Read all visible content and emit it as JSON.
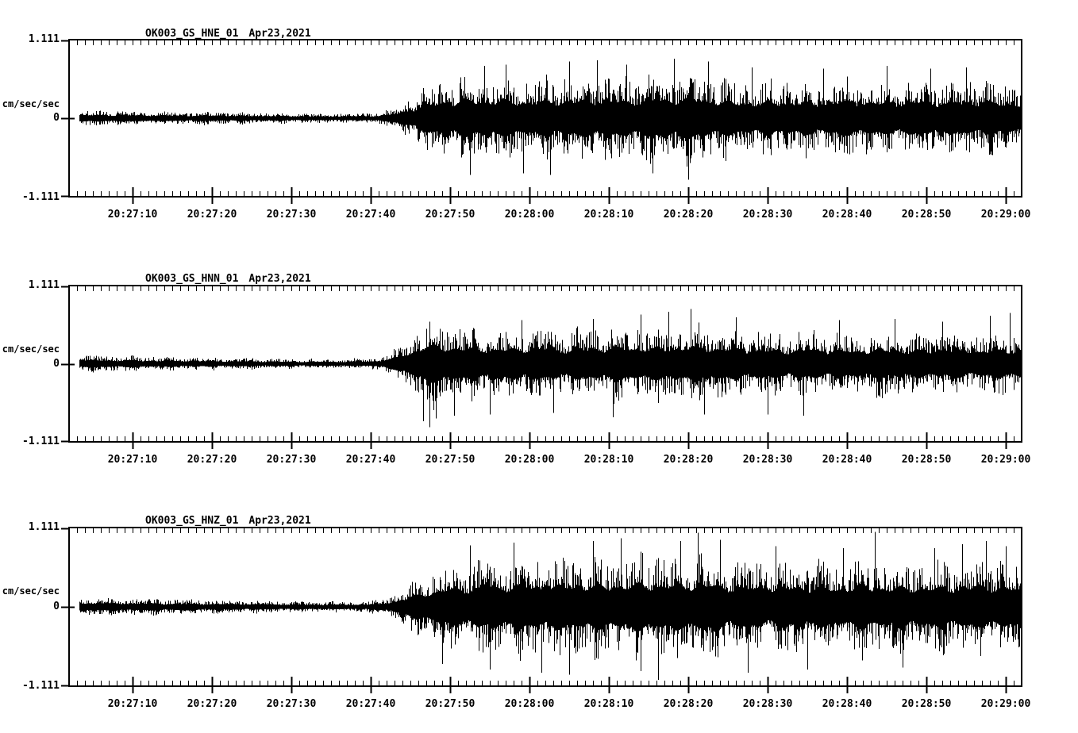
{
  "colors": {
    "background": "#ffffff",
    "trace": "#000000"
  },
  "chart_data": [
    {
      "type": "line",
      "kind": "seismogram",
      "title": "OK003_GS_HNE_01",
      "date_label": "Apr23,2021",
      "ylabel": "cm/sec/sec",
      "ytick_labels": [
        "1.111",
        "0",
        "-1.111"
      ],
      "ylim": [
        -1.111,
        1.111
      ],
      "x_window": [
        "20:27:02",
        "20:29:02"
      ],
      "x_tick_labels": [
        "20:27:10",
        "20:27:20",
        "20:27:30",
        "20:27:40",
        "20:27:50",
        "20:28:00",
        "20:28:10",
        "20:28:20",
        "20:28:30",
        "20:28:40",
        "20:28:50",
        "20:29:00"
      ],
      "x_major_interval_sec": 10,
      "x_minor_interval_sec": 1,
      "grid": false,
      "series_color": "#000000",
      "envelope_t_amp": [
        [
          0,
          0.13
        ],
        [
          12,
          0.11
        ],
        [
          24,
          0.09
        ],
        [
          32,
          0.075
        ],
        [
          37,
          0.08
        ],
        [
          39,
          0.1
        ],
        [
          41,
          0.16
        ],
        [
          43,
          0.34
        ],
        [
          45,
          0.52
        ],
        [
          47,
          0.62
        ],
        [
          50,
          0.68
        ],
        [
          54,
          0.66
        ],
        [
          58,
          0.62
        ],
        [
          62,
          0.66
        ],
        [
          66,
          0.7
        ],
        [
          70,
          0.66
        ],
        [
          74,
          0.72
        ],
        [
          78,
          0.76
        ],
        [
          82,
          0.64
        ],
        [
          86,
          0.58
        ],
        [
          90,
          0.62
        ],
        [
          94,
          0.58
        ],
        [
          98,
          0.64
        ],
        [
          102,
          0.6
        ],
        [
          106,
          0.62
        ],
        [
          110,
          0.58
        ],
        [
          114,
          0.62
        ],
        [
          118,
          0.58
        ],
        [
          120,
          0.56
        ]
      ],
      "notable_spikes_t_amp": [
        [
          50.5,
          -0.8
        ],
        [
          52.3,
          0.74
        ],
        [
          55.0,
          0.76
        ],
        [
          57.2,
          -0.78
        ],
        [
          60.6,
          -0.8
        ],
        [
          63.0,
          0.8
        ],
        [
          66.5,
          0.82
        ],
        [
          70.2,
          0.76
        ],
        [
          73.5,
          -0.78
        ],
        [
          76.2,
          0.84
        ],
        [
          78.0,
          -0.87
        ],
        [
          80.5,
          0.8
        ],
        [
          86.0,
          0.72
        ],
        [
          95.0,
          0.7
        ],
        [
          103.0,
          0.74
        ],
        [
          108.5,
          0.7
        ],
        [
          113.0,
          0.72
        ]
      ]
    },
    {
      "type": "line",
      "kind": "seismogram",
      "title": "OK003_GS_HNN_01",
      "date_label": "Apr23,2021",
      "ylabel": "cm/sec/sec",
      "ytick_labels": [
        "1.111",
        "0",
        "-1.111"
      ],
      "ylim": [
        -1.111,
        1.111
      ],
      "x_window": [
        "20:27:02",
        "20:29:02"
      ],
      "x_tick_labels": [
        "20:27:10",
        "20:27:20",
        "20:27:30",
        "20:27:40",
        "20:27:50",
        "20:28:00",
        "20:28:10",
        "20:28:20",
        "20:28:30",
        "20:28:40",
        "20:28:50",
        "20:29:00"
      ],
      "x_major_interval_sec": 10,
      "x_minor_interval_sec": 1,
      "grid": false,
      "series_color": "#000000",
      "envelope_t_amp": [
        [
          0,
          0.14
        ],
        [
          12,
          0.115
        ],
        [
          24,
          0.09
        ],
        [
          32,
          0.078
        ],
        [
          37,
          0.082
        ],
        [
          39,
          0.11
        ],
        [
          41,
          0.22
        ],
        [
          43,
          0.45
        ],
        [
          45,
          0.7
        ],
        [
          47,
          0.66
        ],
        [
          50,
          0.6
        ],
        [
          54,
          0.56
        ],
        [
          58,
          0.6
        ],
        [
          62,
          0.55
        ],
        [
          66,
          0.58
        ],
        [
          70,
          0.62
        ],
        [
          74,
          0.58
        ],
        [
          78,
          0.64
        ],
        [
          82,
          0.6
        ],
        [
          86,
          0.54
        ],
        [
          90,
          0.52
        ],
        [
          94,
          0.55
        ],
        [
          98,
          0.5
        ],
        [
          102,
          0.54
        ],
        [
          106,
          0.5
        ],
        [
          110,
          0.52
        ],
        [
          114,
          0.48
        ],
        [
          118,
          0.54
        ],
        [
          120,
          0.52
        ]
      ],
      "notable_spikes_t_amp": [
        [
          44.6,
          -0.82
        ],
        [
          45.4,
          -0.9
        ],
        [
          46.2,
          -0.78
        ],
        [
          48.5,
          -0.74
        ],
        [
          53.0,
          -0.72
        ],
        [
          57.0,
          0.62
        ],
        [
          61.0,
          -0.7
        ],
        [
          66.0,
          0.64
        ],
        [
          68.5,
          -0.76
        ],
        [
          72.0,
          0.7
        ],
        [
          75.5,
          0.74
        ],
        [
          78.3,
          0.78
        ],
        [
          80.0,
          -0.72
        ],
        [
          84.0,
          0.66
        ],
        [
          88.0,
          -0.72
        ],
        [
          92.5,
          -0.74
        ],
        [
          97.0,
          0.62
        ],
        [
          104.0,
          0.64
        ],
        [
          110.0,
          0.6
        ],
        [
          116.0,
          0.68
        ],
        [
          118.5,
          0.72
        ]
      ]
    },
    {
      "type": "line",
      "kind": "seismogram",
      "title": "OK003_GS_HNZ_01",
      "date_label": "Apr23,2021",
      "ylabel": "cm/sec/sec",
      "ytick_labels": [
        "1.111",
        "0",
        "-1.111"
      ],
      "ylim": [
        -1.111,
        1.111
      ],
      "x_window": [
        "20:27:02",
        "20:29:02"
      ],
      "x_tick_labels": [
        "20:27:10",
        "20:27:20",
        "20:27:30",
        "20:27:40",
        "20:27:50",
        "20:28:00",
        "20:28:10",
        "20:28:20",
        "20:28:30",
        "20:28:40",
        "20:28:50",
        "20:29:00"
      ],
      "x_major_interval_sec": 10,
      "x_minor_interval_sec": 1,
      "grid": false,
      "series_color": "#000000",
      "envelope_t_amp": [
        [
          0,
          0.15
        ],
        [
          12,
          0.125
        ],
        [
          24,
          0.1
        ],
        [
          32,
          0.085
        ],
        [
          37,
          0.088
        ],
        [
          39,
          0.11
        ],
        [
          41,
          0.2
        ],
        [
          43,
          0.38
        ],
        [
          45,
          0.55
        ],
        [
          48,
          0.68
        ],
        [
          52,
          0.74
        ],
        [
          56,
          0.8
        ],
        [
          60,
          0.78
        ],
        [
          64,
          0.82
        ],
        [
          68,
          0.8
        ],
        [
          72,
          0.85
        ],
        [
          76,
          0.82
        ],
        [
          80,
          0.86
        ],
        [
          84,
          0.76
        ],
        [
          88,
          0.72
        ],
        [
          92,
          0.76
        ],
        [
          96,
          0.7
        ],
        [
          100,
          0.78
        ],
        [
          104,
          0.72
        ],
        [
          108,
          0.74
        ],
        [
          112,
          0.72
        ],
        [
          116,
          0.78
        ],
        [
          120,
          0.68
        ]
      ],
      "notable_spikes_t_amp": [
        [
          47.0,
          -0.8
        ],
        [
          50.5,
          0.86
        ],
        [
          53.0,
          -0.88
        ],
        [
          56.0,
          0.9
        ],
        [
          59.5,
          -0.92
        ],
        [
          63.0,
          -0.95
        ],
        [
          66.0,
          0.92
        ],
        [
          69.5,
          0.96
        ],
        [
          72.0,
          -0.9
        ],
        [
          74.2,
          -1.02
        ],
        [
          77.0,
          0.92
        ],
        [
          79.2,
          1.04
        ],
        [
          82.0,
          0.94
        ],
        [
          85.5,
          -0.92
        ],
        [
          89.0,
          0.85
        ],
        [
          93.0,
          -0.88
        ],
        [
          97.5,
          0.82
        ],
        [
          101.5,
          1.05
        ],
        [
          105.0,
          -0.85
        ],
        [
          109.0,
          0.82
        ],
        [
          112.5,
          0.88
        ],
        [
          115.5,
          0.92
        ],
        [
          118.0,
          0.85
        ]
      ]
    }
  ]
}
